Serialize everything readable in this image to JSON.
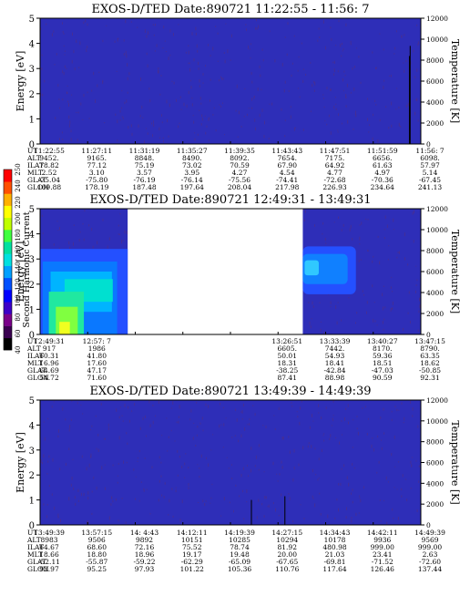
{
  "chart_data": [
    {
      "type": "heatmap",
      "title": "EXOS-D/TED   Date:890721  11:22:55 - 11:56: 7",
      "ylabel": "Energy [eV]",
      "ylabel_right": "Temperature [K]",
      "ylim": [
        0,
        5
      ],
      "ylim_right": [
        0,
        12000
      ],
      "y_ticks": [
        "0",
        "1",
        "2",
        "3",
        "4",
        "5"
      ],
      "y_ticks_right": [
        "0",
        "2000",
        "4000",
        "6000",
        "8000",
        "10000",
        "12000"
      ],
      "background_color": "#2e2eb8",
      "data_coverage": [
        [
          0,
          1
        ]
      ],
      "spikes": [
        {
          "x": 0.97,
          "top": 0.3
        },
        {
          "x": 0.972,
          "top": 0.22
        }
      ],
      "ephemeris": {
        "row_labels": [
          "UT",
          "ALT",
          "ILAT",
          "MLT",
          "GLAT",
          "GLON"
        ],
        "columns": [
          [
            "11:22:55",
            "9452.",
            "78.82",
            "2.52",
            "-75.04",
            "169.88"
          ],
          [
            "11:27:11",
            "9165.",
            "77.12",
            "3.10",
            "-75.80",
            "178.19"
          ],
          [
            "11:31:19",
            "8848.",
            "75.19",
            "3.57",
            "-76.19",
            "187.48"
          ],
          [
            "11:35:27",
            "8490.",
            "73.02",
            "3.95",
            "-76.14",
            "197.64"
          ],
          [
            "11:39:35",
            "8092.",
            "70.59",
            "4.27",
            "-75.56",
            "208.04"
          ],
          [
            "11:43:43",
            "7654.",
            "67.90",
            "4.54",
            "-74.41",
            "217.98"
          ],
          [
            "11:47:51",
            "7175.",
            "64.92",
            "4.77",
            "-72.68",
            "226.93"
          ],
          [
            "11:51:59",
            "6656.",
            "61.63",
            "4.97",
            "-70.36",
            "234.64"
          ],
          [
            "11:56: 7",
            "6098.",
            "57.97",
            "5.14",
            "-67.45",
            "241.13"
          ]
        ]
      }
    },
    {
      "type": "heatmap",
      "title": "EXOS-D/TED   Date:890721  12:49:31 - 13:49:31",
      "ylabel": "Energy [eV]",
      "ylabel_right": "Temperature [K]",
      "ylim": [
        0,
        5
      ],
      "ylim_right": [
        0,
        12000
      ],
      "y_ticks": [
        "0",
        "1",
        "2",
        "3",
        "4",
        "5"
      ],
      "y_ticks_right": [
        "0",
        "2000",
        "4000",
        "6000",
        "8000",
        "10000",
        "12000"
      ],
      "background_color": "#2e2eb8",
      "data_coverage": [
        [
          0,
          0.23
        ],
        [
          0.69,
          1
        ]
      ],
      "colorbar": {
        "label": "Second Harmonic Current",
        "ticks": [
          "40",
          "60",
          "80",
          "100",
          "120",
          "140",
          "160",
          "180",
          "200",
          "220",
          "240",
          "250"
        ],
        "colors": [
          "#000000",
          "#3a0050",
          "#7a008a",
          "#3c00c8",
          "#0000ff",
          "#0050ff",
          "#00a0ff",
          "#00e0e0",
          "#00e0a0",
          "#40ff40",
          "#c0ff00",
          "#ffff00",
          "#ffb000",
          "#ff5000",
          "#ff0000"
        ]
      },
      "ephemeris": {
        "row_labels": [
          "UT",
          "ALT",
          "ILAT",
          "MLT",
          "GLAT",
          "GLON"
        ],
        "columns": [
          [
            "12:49:31",
            "917",
            "60.31",
            "16.96",
            "64.69",
            "54.72"
          ],
          [
            "12:57: 7",
            "1986",
            "41.80",
            "17.60",
            "47.17",
            "71.60"
          ],
          [
            "",
            "",
            "",
            "",
            "",
            ""
          ],
          [
            "",
            "",
            "",
            "",
            "",
            ""
          ],
          [
            "",
            "",
            "",
            "",
            "",
            ""
          ],
          [
            "13:26:51",
            "6605.",
            "50.01",
            "18.31",
            "-38.25",
            "87.41"
          ],
          [
            "13:33:39",
            "7442.",
            "54.93",
            "18.41",
            "-42.84",
            "88.98"
          ],
          [
            "13:40:27",
            "8170.",
            "59.36",
            "18.51",
            "-47.03",
            "90.59"
          ],
          [
            "13:47:15",
            "8790.",
            "63.35",
            "18.62",
            "-50.85",
            "92.31"
          ]
        ]
      }
    },
    {
      "type": "heatmap",
      "title": "EXOS-D/TED   Date:890721  13:49:39 - 14:49:39",
      "ylabel": "Energy [eV]",
      "ylabel_right": "Temperature [K]",
      "ylim": [
        0,
        5
      ],
      "ylim_right": [
        0,
        12000
      ],
      "y_ticks": [
        "0",
        "1",
        "2",
        "3",
        "4",
        "5"
      ],
      "y_ticks_right": [
        "0",
        "2000",
        "4000",
        "6000",
        "8000",
        "10000",
        "12000"
      ],
      "background_color": "#2e2eb8",
      "data_coverage": [
        [
          0,
          1
        ]
      ],
      "spikes": [
        {
          "x": 0.555,
          "top": 0.8
        },
        {
          "x": 0.643,
          "top": 0.77
        }
      ],
      "ephemeris": {
        "row_labels": [
          "UT",
          "ALT",
          "ILAT",
          "MLT",
          "GLAT",
          "GLON"
        ],
        "columns": [
          [
            "13:49:39",
            "8983",
            "64.67",
            "18.66",
            "-52.11",
            "92.97"
          ],
          [
            "13:57:15",
            "9506",
            "68.60",
            "18.80",
            "-55.87",
            "95.25"
          ],
          [
            "14: 4:43",
            "9892",
            "72.16",
            "18.96",
            "-59.22",
            "97.93"
          ],
          [
            "14:12:11",
            "10151",
            "75.52",
            "19.17",
            "-62.29",
            "101.22"
          ],
          [
            "14:19:39",
            "10285",
            "78.74",
            "19.48",
            "-65.09",
            "105.36"
          ],
          [
            "14:27:15",
            "10294",
            "81.92",
            "20.00",
            "-67.65",
            "110.76"
          ],
          [
            "14:34:43",
            "10178",
            "480.98",
            "21.03",
            "-69.81",
            "117.64"
          ],
          [
            "14:42:11",
            "9936",
            "999.00",
            "23.41",
            "-71.52",
            "126.46"
          ],
          [
            "14:49:39",
            "9569",
            "999.00",
            "2.63",
            "-72.60",
            "137.44"
          ]
        ]
      }
    }
  ]
}
